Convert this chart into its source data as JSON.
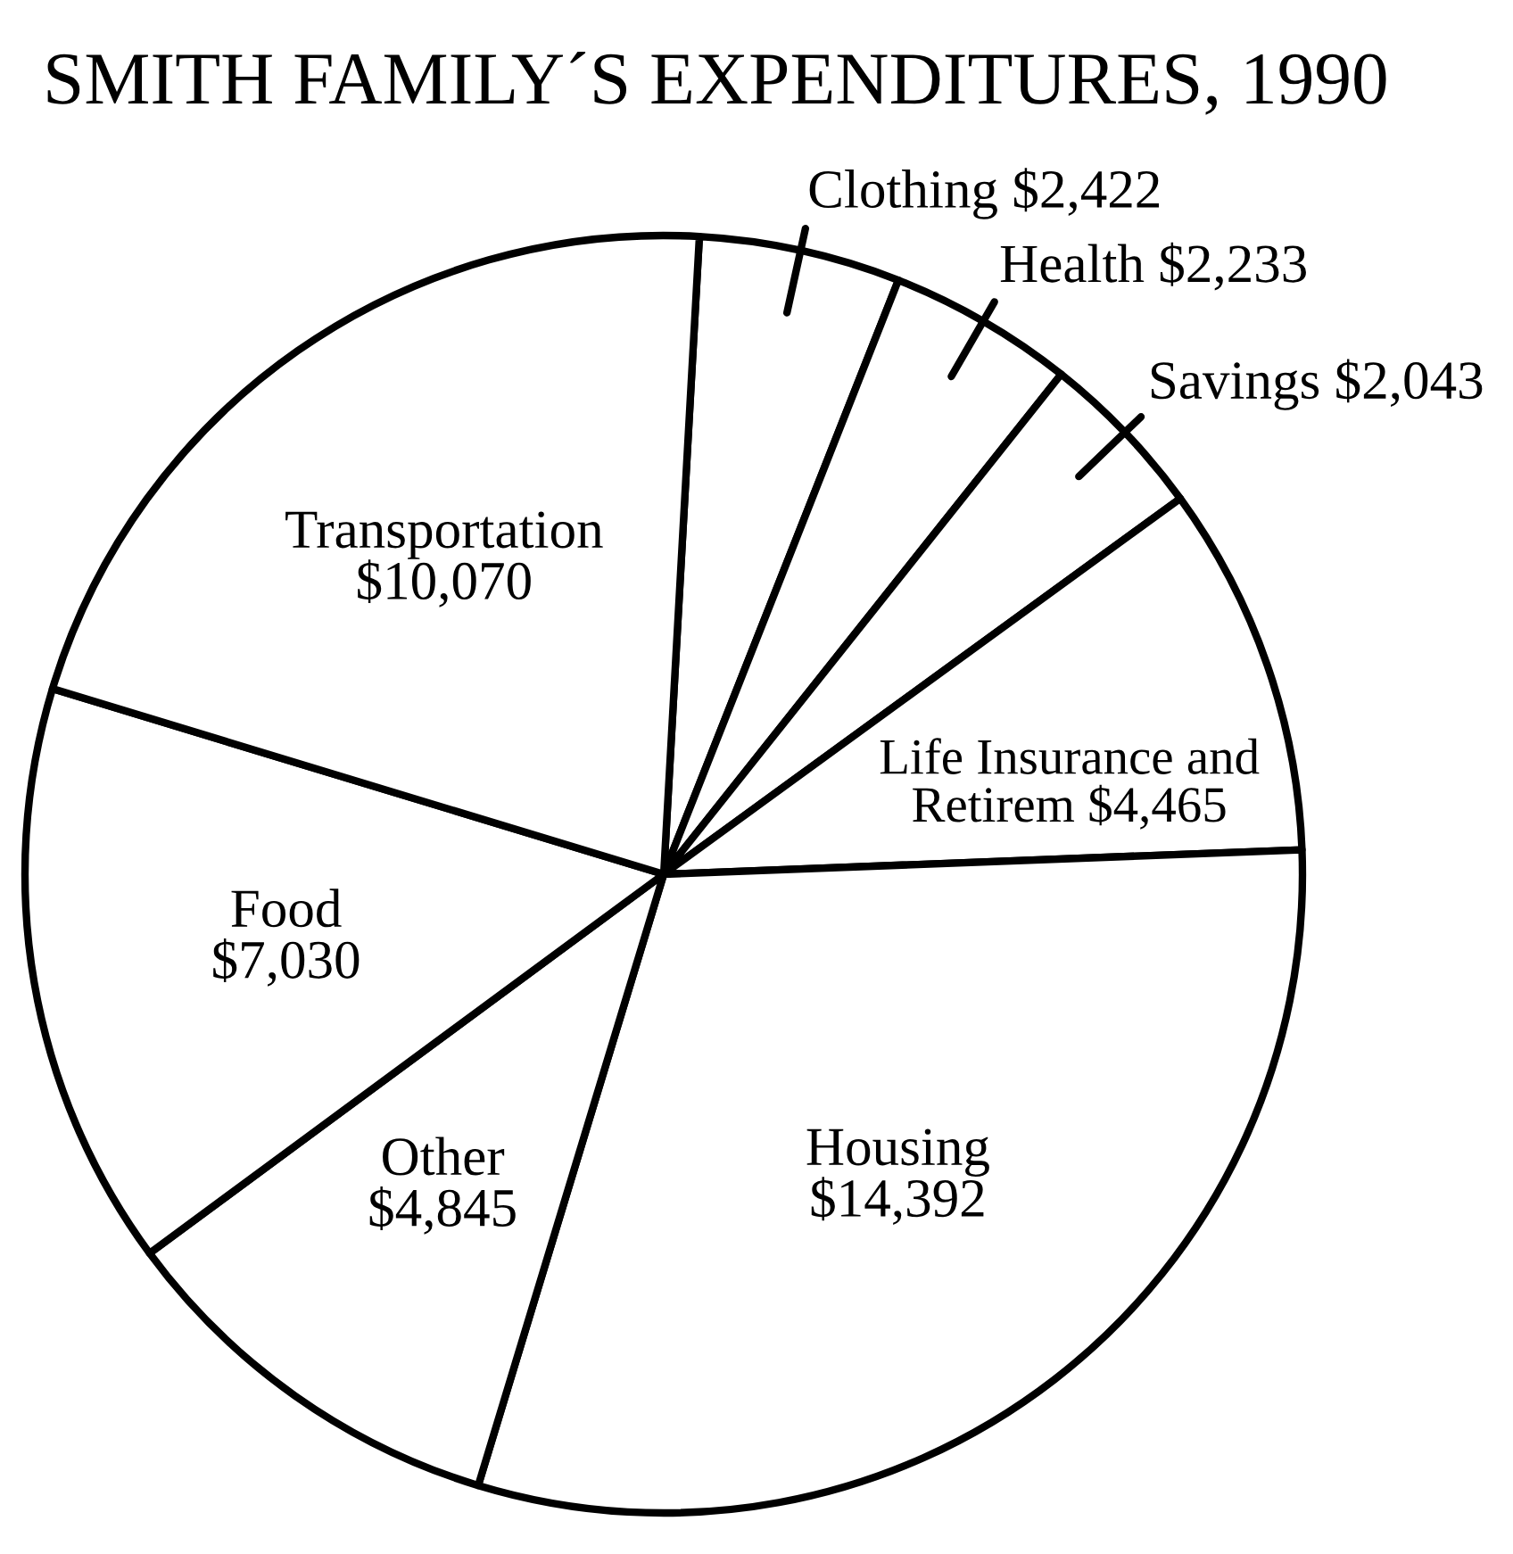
{
  "chart_data": {
    "type": "pie",
    "title": "SMITH FAMILY´S EXPENDITURES, 1990",
    "categories": [
      "Clothing",
      "Health",
      "Savings",
      "Life Insurance and Retirem",
      "Housing",
      "Other",
      "Food",
      "Transportation"
    ],
    "values": [
      2422,
      2233,
      2043,
      4465,
      14392,
      4845,
      7030,
      10070
    ],
    "value_labels": [
      "$2,422",
      "$2,233",
      "$2,043",
      "$4,465",
      "$14,392",
      "$4,845",
      "$7,030",
      "$10,070"
    ],
    "colors": [
      "#ffffff",
      "#ffffff",
      "#ffffff",
      "#ffffff",
      "#ffffff",
      "#ffffff",
      "#ffffff",
      "#ffffff"
    ]
  }
}
